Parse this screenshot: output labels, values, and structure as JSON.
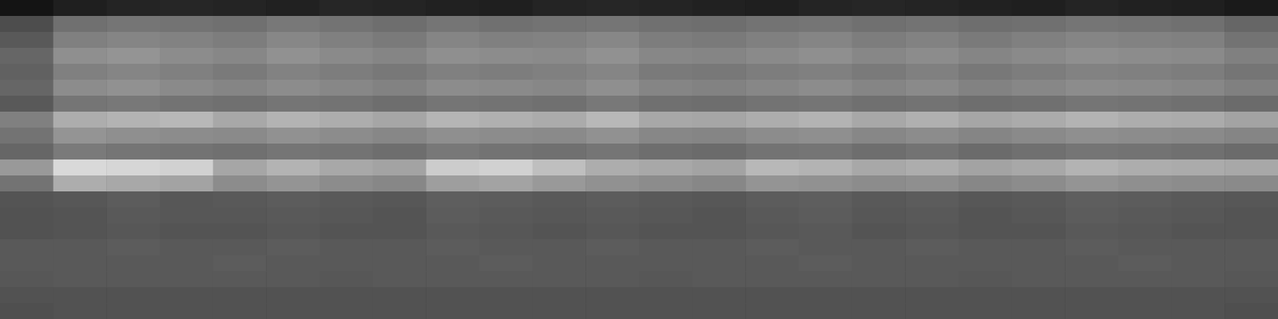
{
  "chart_data": {
    "type": "heatmap",
    "tick_labels": false,
    "zlim": [
      0,
      100
    ],
    "z": [
      [
        8,
        12,
        14,
        15,
        14,
        13,
        15,
        14,
        13,
        12,
        14,
        15,
        14,
        13,
        12,
        14,
        15,
        14,
        13,
        12,
        14,
        13,
        12,
        10
      ],
      [
        30,
        44,
        46,
        45,
        44,
        47,
        45,
        43,
        46,
        44,
        45,
        46,
        44,
        43,
        45,
        46,
        44,
        45,
        43,
        44,
        46,
        45,
        44,
        40
      ],
      [
        35,
        50,
        52,
        51,
        49,
        53,
        50,
        48,
        52,
        50,
        51,
        53,
        49,
        48,
        50,
        52,
        49,
        51,
        48,
        50,
        52,
        51,
        50,
        45
      ],
      [
        40,
        56,
        58,
        55,
        53,
        57,
        54,
        52,
        56,
        55,
        54,
        57,
        53,
        52,
        54,
        56,
        53,
        55,
        52,
        54,
        56,
        55,
        54,
        50
      ],
      [
        38,
        50,
        52,
        50,
        48,
        51,
        49,
        47,
        50,
        49,
        50,
        52,
        48,
        47,
        49,
        50,
        48,
        50,
        47,
        49,
        51,
        50,
        49,
        46
      ],
      [
        40,
        55,
        57,
        54,
        52,
        55,
        53,
        51,
        55,
        54,
        53,
        56,
        52,
        51,
        53,
        55,
        52,
        54,
        51,
        53,
        55,
        54,
        53,
        50
      ],
      [
        35,
        46,
        47,
        45,
        44,
        46,
        45,
        43,
        46,
        45,
        44,
        47,
        44,
        43,
        45,
        46,
        44,
        45,
        43,
        44,
        46,
        45,
        44,
        42
      ],
      [
        50,
        68,
        70,
        72,
        66,
        70,
        68,
        65,
        71,
        69,
        67,
        72,
        66,
        65,
        68,
        70,
        66,
        69,
        65,
        67,
        70,
        68,
        67,
        64
      ],
      [
        45,
        58,
        56,
        55,
        54,
        57,
        55,
        53,
        56,
        55,
        54,
        57,
        53,
        52,
        55,
        56,
        53,
        55,
        52,
        54,
        56,
        55,
        54,
        52
      ],
      [
        40,
        48,
        46,
        45,
        44,
        46,
        45,
        43,
        47,
        45,
        44,
        46,
        43,
        42,
        45,
        46,
        43,
        45,
        42,
        44,
        46,
        45,
        44,
        42
      ],
      [
        60,
        85,
        84,
        82,
        65,
        70,
        66,
        64,
        80,
        82,
        75,
        68,
        66,
        64,
        72,
        70,
        66,
        68,
        64,
        66,
        70,
        68,
        67,
        66
      ],
      [
        45,
        68,
        66,
        64,
        55,
        58,
        55,
        53,
        62,
        64,
        60,
        57,
        55,
        53,
        58,
        57,
        55,
        56,
        53,
        55,
        58,
        56,
        55,
        54
      ],
      [
        33,
        34,
        36,
        34,
        35,
        36,
        35,
        34,
        37,
        36,
        35,
        36,
        35,
        34,
        36,
        37,
        35,
        36,
        34,
        35,
        37,
        36,
        35,
        34
      ],
      [
        32,
        33,
        35,
        34,
        34,
        35,
        34,
        33,
        36,
        35,
        34,
        35,
        34,
        33,
        35,
        36,
        34,
        35,
        33,
        34,
        36,
        35,
        34,
        33
      ],
      [
        32,
        33,
        34,
        33,
        33,
        34,
        33,
        33,
        35,
        34,
        33,
        34,
        33,
        33,
        34,
        35,
        33,
        34,
        33,
        33,
        35,
        34,
        33,
        33
      ],
      [
        35,
        35,
        36,
        35,
        35,
        36,
        35,
        35,
        36,
        35,
        35,
        36,
        35,
        35,
        36,
        35,
        35,
        36,
        35,
        35,
        36,
        35,
        35,
        35
      ],
      [
        35,
        35,
        35,
        35,
        36,
        35,
        35,
        35,
        35,
        36,
        35,
        35,
        35,
        35,
        35,
        36,
        35,
        35,
        35,
        35,
        35,
        36,
        35,
        35
      ],
      [
        34,
        35,
        35,
        35,
        35,
        35,
        34,
        35,
        35,
        35,
        35,
        35,
        34,
        35,
        35,
        35,
        35,
        35,
        34,
        35,
        35,
        35,
        35,
        34
      ],
      [
        32,
        32,
        32,
        32,
        32,
        32,
        32,
        32,
        32,
        32,
        32,
        32,
        32,
        32,
        32,
        32,
        32,
        32,
        32,
        32,
        32,
        32,
        32,
        32
      ],
      [
        31,
        32,
        32,
        32,
        32,
        32,
        32,
        32,
        32,
        32,
        32,
        32,
        32,
        32,
        32,
        32,
        32,
        32,
        32,
        32,
        32,
        32,
        32,
        31
      ]
    ]
  }
}
